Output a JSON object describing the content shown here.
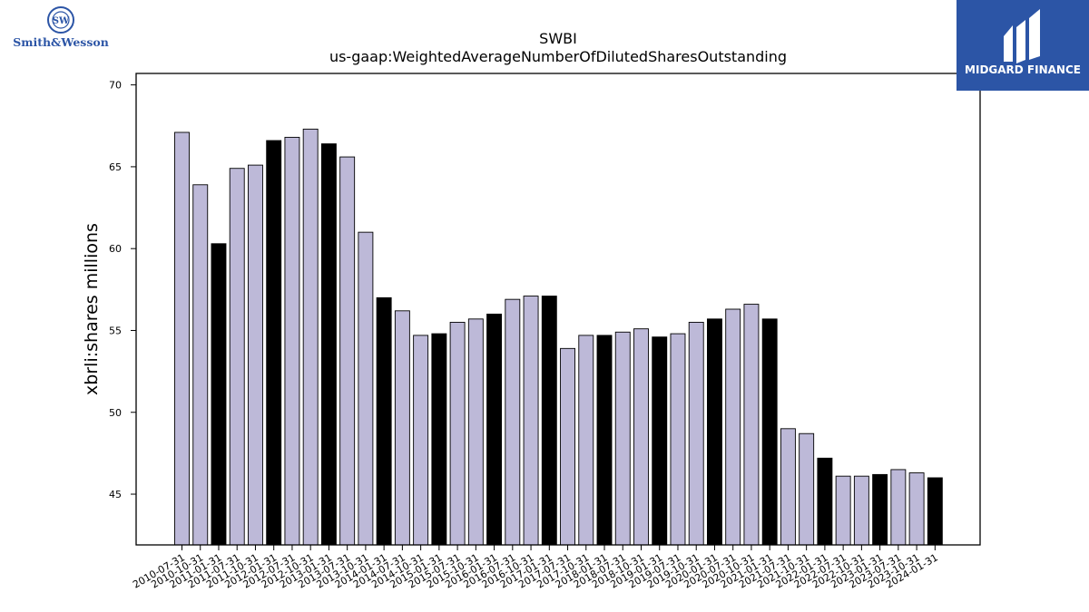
{
  "logos": {
    "left_text": "Smith&Wesson",
    "right_text": "MIDGARD FINANCE"
  },
  "chart_data": {
    "type": "bar",
    "title": "SWBI",
    "subtitle": "us-gaap:WeightedAverageNumberOfDilutedSharesOutstanding",
    "xlabel": "",
    "ylabel": "xbrli:shares millions",
    "ylim": [
      41.9,
      70.7
    ],
    "yticks": [
      45,
      50,
      55,
      60,
      65,
      70
    ],
    "grid": false,
    "colors": {
      "quarter": "#bdb9d8",
      "annual": "#000000",
      "edge": "#000000"
    },
    "categories": [
      "2010-07-31",
      "2010-10-31",
      "2011-01-31",
      "2011-07-31",
      "2011-10-31",
      "2012-01-31",
      "2012-07-31",
      "2012-10-31",
      "2013-01-31",
      "2013-07-31",
      "2013-10-31",
      "2014-01-31",
      "2014-07-31",
      "2014-10-31",
      "2015-01-31",
      "2015-07-31",
      "2015-10-31",
      "2016-01-31",
      "2016-07-31",
      "2016-10-31",
      "2017-01-31",
      "2017-07-31",
      "2017-10-31",
      "2018-01-31",
      "2018-07-31",
      "2018-10-31",
      "2019-01-31",
      "2019-07-31",
      "2019-10-31",
      "2020-01-31",
      "2020-07-31",
      "2020-10-31",
      "2021-01-31",
      "2021-07-31",
      "2021-10-31",
      "2022-01-31",
      "2022-07-31",
      "2022-10-31",
      "2023-01-31",
      "2023-07-31",
      "2023-10-31",
      "2024-01-31"
    ],
    "values": [
      67.1,
      63.9,
      60.3,
      64.9,
      65.1,
      66.6,
      66.8,
      67.3,
      66.4,
      65.6,
      61.0,
      57.0,
      56.2,
      54.7,
      54.8,
      55.5,
      55.7,
      56.0,
      56.9,
      57.1,
      57.1,
      53.9,
      54.7,
      54.7,
      54.9,
      55.1,
      54.6,
      54.8,
      55.5,
      55.7,
      56.3,
      56.6,
      55.7,
      49.0,
      48.7,
      47.2,
      46.1,
      46.1,
      46.2,
      46.5,
      46.3,
      46.0
    ],
    "annual": [
      false,
      false,
      true,
      false,
      false,
      true,
      false,
      false,
      true,
      false,
      false,
      true,
      false,
      false,
      true,
      false,
      false,
      true,
      false,
      false,
      true,
      false,
      false,
      true,
      false,
      false,
      true,
      false,
      false,
      true,
      false,
      false,
      true,
      false,
      false,
      true,
      false,
      false,
      true,
      false,
      false,
      true
    ]
  }
}
